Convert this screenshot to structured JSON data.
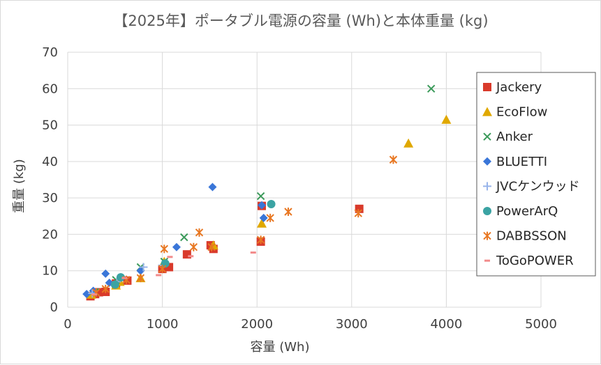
{
  "chart_data": {
    "type": "scatter",
    "title": "【2025年】ポータブル電源の容量 (Wh)と本体重量 (kg)",
    "xlabel": "容量 (Wh)",
    "ylabel": "重量 (kg)",
    "xlim": [
      0,
      5000
    ],
    "ylim": [
      0,
      70
    ],
    "xticks": [
      "0",
      "1000",
      "2000",
      "3000",
      "4000",
      "5000"
    ],
    "yticks": [
      "0",
      "10",
      "20",
      "30",
      "40",
      "50",
      "60",
      "70"
    ],
    "grid": "vertical-and-horizontal major",
    "legend_position": "right",
    "series": [
      {
        "name": "Jackery",
        "marker": "square",
        "color": "#d93a2b",
        "points": [
          [
            240,
            3.0
          ],
          [
            290,
            3.6
          ],
          [
            330,
            4.1
          ],
          [
            400,
            4.2
          ],
          [
            510,
            6.5
          ],
          [
            630,
            7.3
          ],
          [
            1000,
            10.5
          ],
          [
            1070,
            11.0
          ],
          [
            1260,
            14.5
          ],
          [
            1510,
            17.0
          ],
          [
            1540,
            16.0
          ],
          [
            2040,
            18.0
          ],
          [
            2050,
            27.8
          ],
          [
            3080,
            27.0
          ]
        ]
      },
      {
        "name": "EcoFlow",
        "marker": "triangle",
        "color": "#e0a800",
        "points": [
          [
            250,
            3.5
          ],
          [
            510,
            6.0
          ],
          [
            550,
            7.0
          ],
          [
            770,
            8.0
          ],
          [
            1020,
            12.5
          ],
          [
            1540,
            17.0
          ],
          [
            2050,
            23.0
          ],
          [
            3600,
            45.0
          ],
          [
            4000,
            51.5
          ]
        ]
      },
      {
        "name": "Anker",
        "marker": "x",
        "color": "#3b9a5a",
        "points": [
          [
            290,
            4.2
          ],
          [
            510,
            7.5
          ],
          [
            770,
            11.0
          ],
          [
            1020,
            12.5
          ],
          [
            1230,
            19.2
          ],
          [
            2040,
            30.5
          ],
          [
            3840,
            60.0
          ]
        ]
      },
      {
        "name": "BLUETTI",
        "marker": "diamond",
        "color": "#3a76d8",
        "points": [
          [
            200,
            3.6
          ],
          [
            270,
            4.5
          ],
          [
            400,
            9.2
          ],
          [
            440,
            6.7
          ],
          [
            770,
            10.0
          ],
          [
            1150,
            16.5
          ],
          [
            1530,
            33.0
          ],
          [
            2050,
            28.0
          ],
          [
            2070,
            24.5
          ]
        ]
      },
      {
        "name": "JVCケンウッド",
        "marker": "plus",
        "color": "#98b4ea",
        "points": [
          [
            260,
            3.8
          ],
          [
            520,
            7.0
          ],
          [
            800,
            11.0
          ],
          [
            1000,
            11.5
          ]
        ]
      },
      {
        "name": "PowerArQ",
        "marker": "circle",
        "color": "#3ba3a3",
        "points": [
          [
            500,
            6.2
          ],
          [
            560,
            8.2
          ],
          [
            1030,
            12.0
          ],
          [
            2150,
            28.3
          ]
        ]
      },
      {
        "name": "DABBSSON",
        "marker": "star",
        "color": "#e87722",
        "points": [
          [
            300,
            4.0
          ],
          [
            400,
            5.0
          ],
          [
            620,
            7.5
          ],
          [
            770,
            8.0
          ],
          [
            1000,
            10.5
          ],
          [
            1020,
            16.0
          ],
          [
            1330,
            16.5
          ],
          [
            1390,
            20.5
          ],
          [
            1520,
            16.5
          ],
          [
            2040,
            18.5
          ],
          [
            2140,
            24.5
          ],
          [
            2330,
            26.2
          ],
          [
            3070,
            25.8
          ],
          [
            3440,
            40.5
          ]
        ]
      },
      {
        "name": "ToGoPOWER",
        "marker": "dash",
        "color": "#f28b8b",
        "points": [
          [
            280,
            3.5
          ],
          [
            600,
            8.0
          ],
          [
            960,
            8.8
          ],
          [
            1080,
            13.8
          ],
          [
            1300,
            14.0
          ],
          [
            1960,
            15.0
          ]
        ]
      }
    ]
  }
}
